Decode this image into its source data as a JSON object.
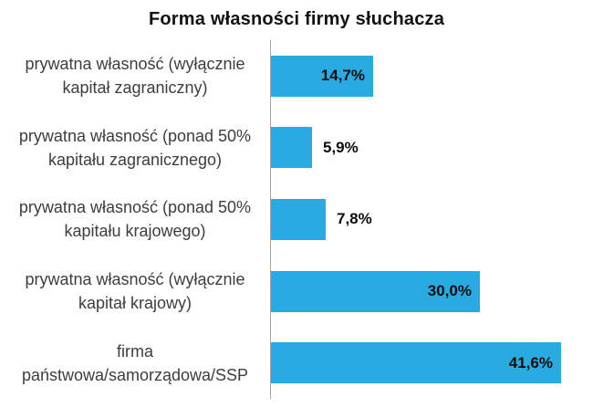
{
  "chart_data": {
    "type": "bar",
    "orientation": "horizontal",
    "title": "Forma własności firmy słuchacza",
    "categories": [
      "prywatna własność (wyłącznie kapitał zagraniczny)",
      "prywatna własność (ponad 50% kapitału zagranicznego)",
      "prywatna własność (ponad 50% kapitału krajowego)",
      "prywatna własność (wyłącznie kapitał krajowy)",
      "firma państwowa/samorządowa/SSP"
    ],
    "values": [
      14.7,
      5.9,
      7.8,
      30.0,
      41.6
    ],
    "value_labels": [
      "14,7%",
      "5,9%",
      "7,8%",
      "30,0%",
      "41,6%"
    ],
    "unit": "%",
    "xlim": [
      0,
      46
    ],
    "grid": false,
    "legend": false,
    "bar_color": "#29ABE2",
    "axis_color": "#a6a6a6",
    "title_color": "#111111",
    "label_color": "#3d3d3d",
    "value_color": "#0d0d0d"
  }
}
